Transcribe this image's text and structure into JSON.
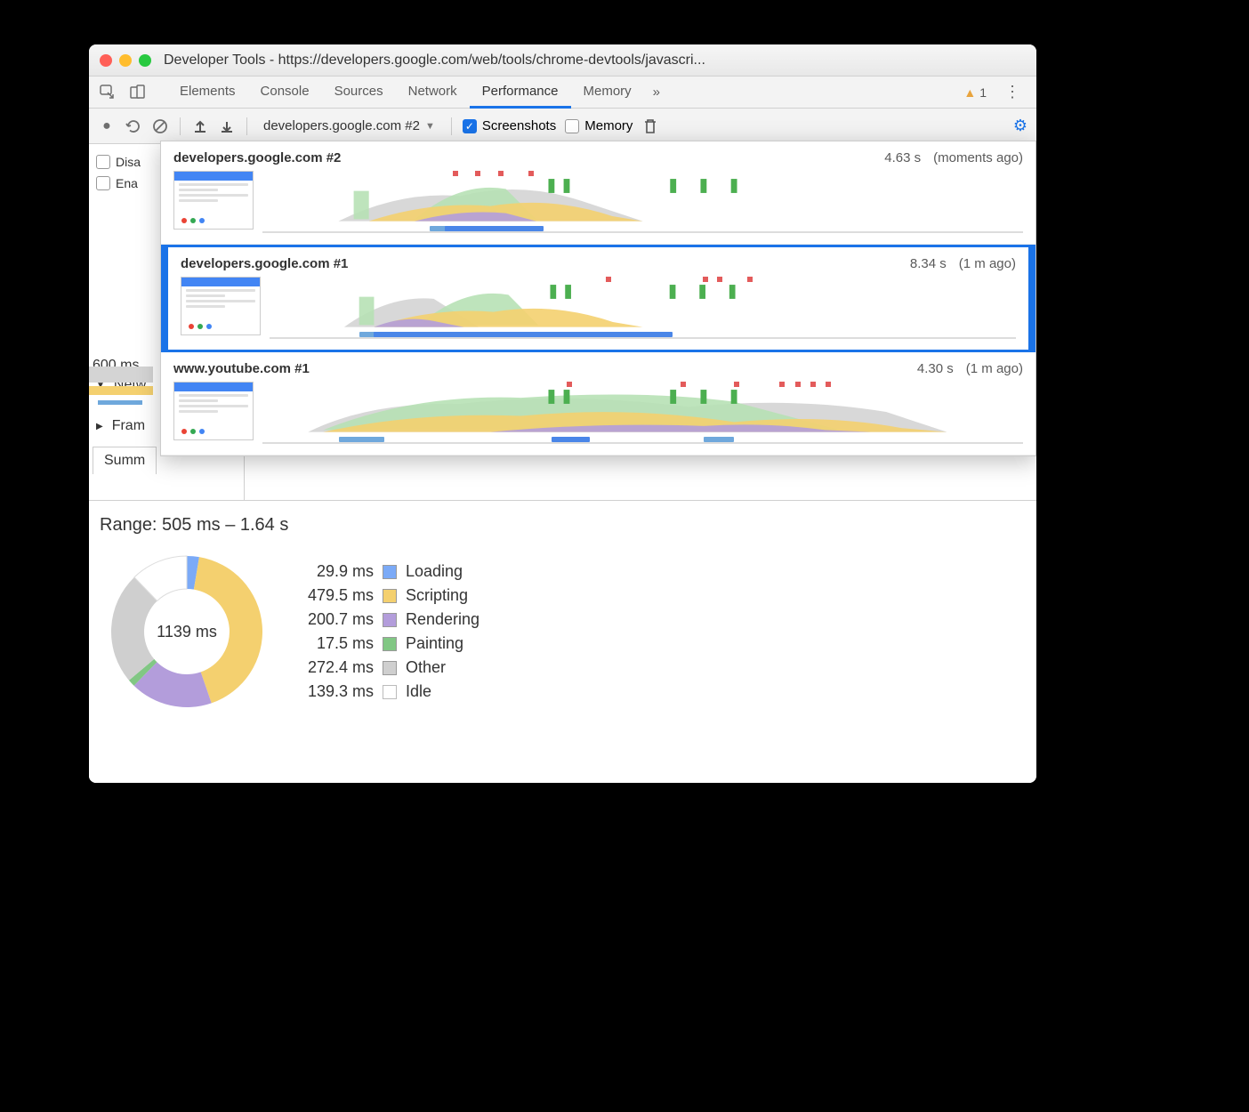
{
  "window": {
    "title": "Developer Tools - https://developers.google.com/web/tools/chrome-devtools/javascri..."
  },
  "tabs": {
    "items": [
      "Elements",
      "Console",
      "Sources",
      "Network",
      "Performance",
      "Memory"
    ],
    "active": "Performance",
    "more_glyph": "»",
    "warning_count": "1"
  },
  "toolbar": {
    "recording_label": "developers.google.com #2",
    "screenshots_label": "Screenshots",
    "screenshots_checked": true,
    "memory_label": "Memory",
    "memory_checked": false
  },
  "left_panel": {
    "disable_label": "Disa",
    "enable_label": "Ena",
    "time_label": "600 ms",
    "network_label": "Netw",
    "frames_label": "Fram",
    "tab_label": "Summ"
  },
  "recordings": [
    {
      "name": "developers.google.com #2",
      "duration": "4.63 s",
      "when": "(moments ago)",
      "selected": false,
      "ticks_pct": [
        25,
        28,
        31,
        35
      ],
      "bars": [
        {
          "l": 22,
          "w": 10,
          "c": "#6fa8dc"
        },
        {
          "l": 24,
          "w": 13,
          "c": "#4a86e8"
        }
      ]
    },
    {
      "name": "developers.google.com #1",
      "duration": "8.34 s",
      "when": "(1 m ago)",
      "selected": true,
      "ticks_pct": [
        45,
        58,
        60,
        64
      ],
      "bars": [
        {
          "l": 12,
          "w": 8,
          "c": "#6fa8dc"
        },
        {
          "l": 14,
          "w": 40,
          "c": "#4a86e8"
        }
      ]
    },
    {
      "name": "www.youtube.com #1",
      "duration": "4.30 s",
      "when": "(1 m ago)",
      "selected": false,
      "ticks_pct": [
        40,
        55,
        62,
        68,
        70,
        72,
        74
      ],
      "bars": [
        {
          "l": 10,
          "w": 6,
          "c": "#6fa8dc"
        },
        {
          "l": 38,
          "w": 5,
          "c": "#4a86e8"
        },
        {
          "l": 58,
          "w": 4,
          "c": "#6fa8dc"
        }
      ]
    }
  ],
  "summary": {
    "range_label": "Range: 505 ms – 1.64 s",
    "total_label": "1139 ms",
    "categories": [
      {
        "name": "Loading",
        "value_label": "29.9 ms",
        "value": 29.9,
        "color": "#7baaf7"
      },
      {
        "name": "Scripting",
        "value_label": "479.5 ms",
        "value": 479.5,
        "color": "#f4d06f"
      },
      {
        "name": "Rendering",
        "value_label": "200.7 ms",
        "value": 200.7,
        "color": "#b39ddb"
      },
      {
        "name": "Painting",
        "value_label": "17.5 ms",
        "value": 17.5,
        "color": "#81c784"
      },
      {
        "name": "Other",
        "value_label": "272.4 ms",
        "value": 272.4,
        "color": "#cfcfcf"
      },
      {
        "name": "Idle",
        "value_label": "139.3 ms",
        "value": 139.3,
        "color": "#ffffff"
      }
    ],
    "donut_inner_radius": 48,
    "donut_outer_radius": 85
  },
  "colors": {
    "loading": "#7baaf7",
    "scripting": "#f4d06f",
    "rendering": "#b39ddb",
    "painting": "#81c784",
    "other": "#cfcfcf",
    "idle": "#ffffff",
    "accent": "#1a73e8",
    "tick_red": "#e35b5b",
    "area_green": "#b7e1b5",
    "area_grey": "#d4d4d4",
    "area_yellow": "#f4d06f",
    "area_purple": "#b39ddb"
  },
  "icons": {
    "record": "●",
    "reload": "⟳",
    "clear": "⃠",
    "up": "⬆",
    "down": "⬇",
    "check": "✓",
    "trash": "🗑",
    "gear": "⚙",
    "warn": "▲",
    "kebab": "⋮",
    "caret": "▼",
    "chev_right": "▶",
    "chev_down": "▼"
  }
}
